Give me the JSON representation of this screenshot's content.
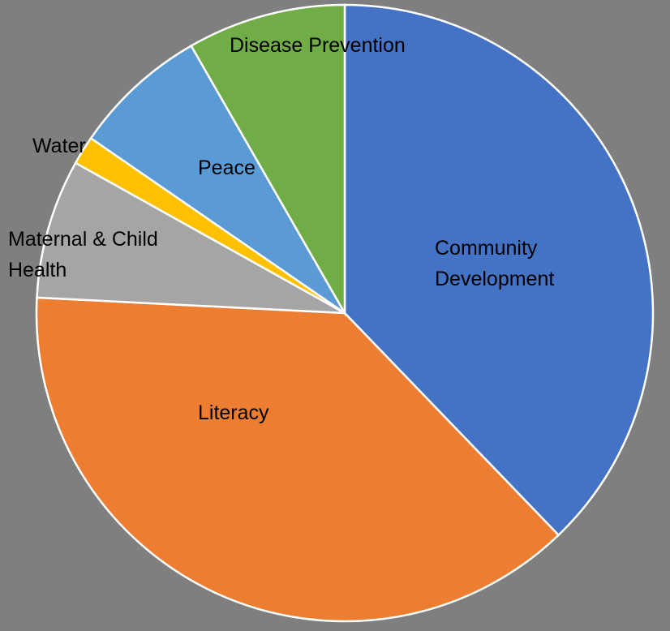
{
  "chart_data": {
    "type": "pie",
    "categories": [
      "Community Development",
      "Literacy",
      "Maternal & Child Health",
      "Water",
      "Peace",
      "Disease Prevention"
    ],
    "values": [
      37.8,
      38.0,
      7.3,
      1.5,
      7.1,
      8.3
    ],
    "colors": [
      "#4472c4",
      "#ed7d31",
      "#a5a5a5",
      "#ffc000",
      "#5b9bd5",
      "#70ad47"
    ]
  }
}
